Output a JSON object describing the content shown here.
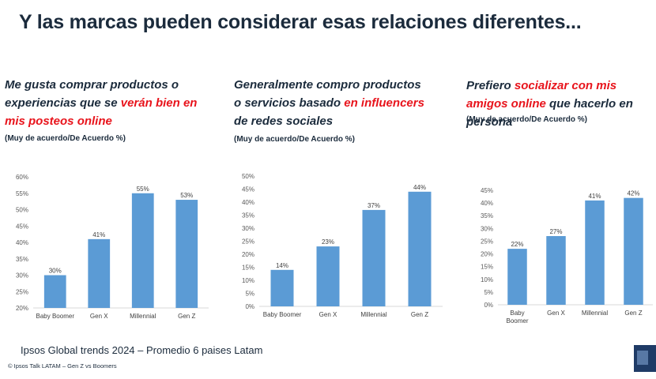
{
  "title": "Y las marcas pueden considerar esas relaciones diferentes...",
  "panels": [
    {
      "heading_parts": [
        {
          "t": "Me gusta comprar productos o experiencias que se ",
          "hl": false
        },
        {
          "t": "verán bien en mis posteos online",
          "hl": true
        }
      ],
      "subtitle": "(Muy de acuerdo/De Acuerdo %)"
    },
    {
      "heading_parts": [
        {
          "t": "Generalmente compro productos o servicios basado ",
          "hl": false
        },
        {
          "t": "en influencers",
          "hl": true
        },
        {
          "t": " de redes sociales",
          "hl": false
        }
      ],
      "subtitle": "(Muy de acuerdo/De Acuerdo %)"
    },
    {
      "heading_parts": [
        {
          "t": "Prefiero ",
          "hl": false
        },
        {
          "t": "socializar con mis amigos online",
          "hl": true
        },
        {
          "t": " que hacerlo en persona",
          "hl": false
        }
      ],
      "subtitle": "(Muy de acuerdo/De Acuerdo %)"
    }
  ],
  "chart_data": [
    {
      "type": "bar",
      "categories": [
        "Baby Boomer",
        "Gen X",
        "Millennial",
        "Gen Z"
      ],
      "values": [
        30,
        41,
        55,
        53
      ],
      "value_labels": [
        "30%",
        "41%",
        "55%",
        "53%"
      ],
      "ylim": [
        20,
        60
      ],
      "yticks": [
        "20%",
        "25%",
        "30%",
        "35%",
        "40%",
        "45%",
        "50%",
        "55%",
        "60%"
      ],
      "color": "#5b9bd5"
    },
    {
      "type": "bar",
      "categories": [
        "Baby Boomer",
        "Gen X",
        "Millennial",
        "Gen Z"
      ],
      "values": [
        14,
        23,
        37,
        44
      ],
      "value_labels": [
        "14%",
        "23%",
        "37%",
        "44%"
      ],
      "ylim": [
        0,
        50
      ],
      "yticks": [
        "0%",
        "5%",
        "10%",
        "15%",
        "20%",
        "25%",
        "30%",
        "35%",
        "40%",
        "45%",
        "50%"
      ],
      "color": "#5b9bd5"
    },
    {
      "type": "bar",
      "categories": [
        [
          "Baby",
          "Boomer"
        ],
        "Gen X",
        "Millennial",
        "Gen Z"
      ],
      "values": [
        22,
        27,
        41,
        42
      ],
      "value_labels": [
        "22%",
        "27%",
        "41%",
        "42%"
      ],
      "ylim": [
        0,
        45
      ],
      "yticks": [
        "0%",
        "5%",
        "10%",
        "15%",
        "20%",
        "25%",
        "30%",
        "35%",
        "40%",
        "45%"
      ],
      "color": "#5b9bd5"
    }
  ],
  "footer": {
    "source": "Ipsos Global trends 2024 – Promedio 6 paises Latam",
    "copyright": "© Ipsos Talk LATAM – Gen Z vs Boomers"
  }
}
